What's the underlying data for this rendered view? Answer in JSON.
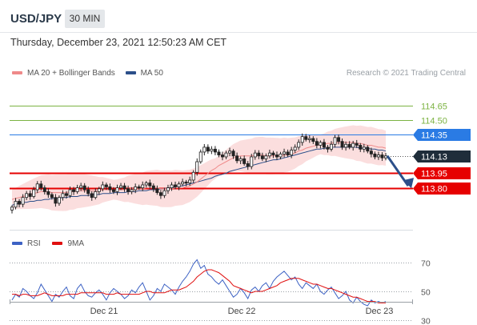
{
  "header": {
    "symbol": "USD/JPY",
    "timeframe": "30 MIN",
    "timestamp": "Thursday, December 23, 2021 12:50:23 AM CET",
    "credit": "Research © 2021 Trading Central"
  },
  "legend_price": [
    {
      "label": "MA 20 + Bollinger Bands",
      "color": "#ef8a8a"
    },
    {
      "label": "MA 50",
      "color": "#2c4f8a"
    }
  ],
  "legend_rsi": [
    {
      "label": "RSI",
      "color": "#3d62c4"
    },
    {
      "label": "9MA",
      "color": "#e01010"
    }
  ],
  "chart_data": [
    {
      "type": "candlestick",
      "title": "USD/JPY",
      "ylim": [
        113.55,
        114.78
      ],
      "x_ticks": [
        "Dec 21",
        "Dec 22",
        "Dec 23"
      ],
      "levels": [
        {
          "label": "114.65",
          "value": 114.65,
          "color": "#7cb342",
          "style": "target"
        },
        {
          "label": "114.50",
          "value": 114.5,
          "color": "#7cb342",
          "style": "target"
        },
        {
          "label": "114.35",
          "value": 114.35,
          "color": "#2a7be4",
          "style": "pivot"
        },
        {
          "label": "114.13",
          "value": 114.13,
          "color": "#1f2d3a",
          "style": "last"
        },
        {
          "label": "113.95",
          "value": 113.95,
          "color": "#e60000",
          "style": "support"
        },
        {
          "label": "113.80",
          "value": 113.8,
          "color": "#e60000",
          "style": "support"
        }
      ],
      "closes": [
        113.6,
        113.66,
        113.63,
        113.7,
        113.74,
        113.71,
        113.78,
        113.84,
        113.8,
        113.76,
        113.73,
        113.7,
        113.64,
        113.7,
        113.74,
        113.72,
        113.78,
        113.76,
        113.8,
        113.82,
        113.78,
        113.74,
        113.7,
        113.76,
        113.79,
        113.83,
        113.81,
        113.78,
        113.76,
        113.8,
        113.82,
        113.79,
        113.76,
        113.78,
        113.81,
        113.8,
        113.83,
        113.85,
        113.82,
        113.79,
        113.75,
        113.72,
        113.77,
        113.8,
        113.83,
        113.81,
        113.84,
        113.86,
        113.85,
        113.88,
        113.96,
        114.07,
        114.17,
        114.22,
        114.18,
        114.2,
        114.17,
        114.14,
        114.12,
        114.16,
        114.18,
        114.13,
        114.08,
        114.1,
        114.05,
        114.02,
        114.12,
        114.16,
        114.13,
        114.1,
        114.13,
        114.16,
        114.14,
        114.12,
        114.15,
        114.17,
        114.14,
        114.19,
        114.22,
        114.27,
        114.33,
        114.3,
        114.31,
        114.28,
        114.24,
        114.27,
        114.22,
        114.2,
        114.25,
        114.32,
        114.28,
        114.22,
        114.25,
        114.22,
        114.26,
        114.24,
        114.2,
        114.22,
        114.18,
        114.15,
        114.12,
        114.14,
        114.11,
        114.13
      ],
      "ma20": [
        113.68,
        113.69,
        113.7,
        113.71,
        113.72,
        113.73,
        113.74,
        113.75,
        113.76,
        113.76,
        113.76,
        113.75,
        113.75,
        113.75,
        113.75,
        113.75,
        113.76,
        113.76,
        113.77,
        113.77,
        113.77,
        113.77,
        113.77,
        113.77,
        113.77,
        113.78,
        113.78,
        113.78,
        113.78,
        113.78,
        113.78,
        113.78,
        113.79,
        113.79,
        113.79,
        113.79,
        113.79,
        113.8,
        113.8,
        113.8,
        113.8,
        113.79,
        113.79,
        113.79,
        113.79,
        113.8,
        113.8,
        113.8,
        113.81,
        113.82,
        113.84,
        113.86,
        113.89,
        113.92,
        113.95,
        113.98,
        114.0,
        114.03,
        114.05,
        114.07,
        114.09,
        114.11,
        114.12,
        114.13,
        114.13,
        114.13,
        114.13,
        114.14,
        114.14,
        114.14,
        114.13,
        114.13,
        114.13,
        114.13,
        114.13,
        114.14,
        114.14,
        114.15,
        114.16,
        114.18,
        114.19,
        114.21,
        114.22,
        114.23,
        114.24,
        114.25,
        114.25,
        114.26,
        114.26,
        114.27,
        114.27,
        114.27,
        114.27,
        114.27,
        114.27,
        114.26,
        114.26,
        114.25,
        114.24,
        114.24,
        114.23,
        114.22,
        114.22,
        114.21
      ],
      "ma50": [
        113.62,
        113.63,
        113.64,
        113.65,
        113.65,
        113.66,
        113.66,
        113.67,
        113.67,
        113.68,
        113.68,
        113.69,
        113.69,
        113.69,
        113.7,
        113.7,
        113.71,
        113.71,
        113.71,
        113.72,
        113.72,
        113.72,
        113.73,
        113.73,
        113.73,
        113.74,
        113.74,
        113.74,
        113.75,
        113.75,
        113.75,
        113.75,
        113.76,
        113.76,
        113.76,
        113.77,
        113.77,
        113.77,
        113.78,
        113.78,
        113.78,
        113.79,
        113.79,
        113.8,
        113.8,
        113.81,
        113.82,
        113.82,
        113.83,
        113.84,
        113.85,
        113.86,
        113.87,
        113.88,
        113.89,
        113.9,
        113.92,
        113.93,
        113.94,
        113.95,
        113.97,
        113.98,
        113.99,
        114.0,
        114.01,
        114.02,
        114.03,
        114.04,
        114.05,
        114.06,
        114.07,
        114.08,
        114.09,
        114.09,
        114.1,
        114.11,
        114.12,
        114.13,
        114.14,
        114.15,
        114.16,
        114.17,
        114.18,
        114.19,
        114.2,
        114.2,
        114.21,
        114.21,
        114.22,
        114.22,
        114.22,
        114.22,
        114.22,
        114.22,
        114.22,
        114.22,
        114.21,
        114.21,
        114.21,
        114.2,
        114.2,
        114.19,
        114.19,
        114.18
      ]
    },
    {
      "type": "line",
      "title": "RSI",
      "ylim": [
        20,
        80
      ],
      "y_ticks": [
        70,
        50,
        30
      ],
      "series": [
        {
          "name": "RSI",
          "values": [
            44,
            48,
            46,
            52,
            50,
            47,
            45,
            49,
            55,
            51,
            47,
            43,
            48,
            46,
            50,
            53,
            47,
            45,
            52,
            55,
            50,
            47,
            46,
            49,
            51,
            48,
            44,
            49,
            52,
            50,
            48,
            45,
            47,
            51,
            49,
            53,
            56,
            50,
            44,
            47,
            52,
            50,
            55,
            53,
            51,
            48,
            53,
            57,
            60,
            64,
            69,
            72,
            66,
            68,
            62,
            60,
            57,
            55,
            58,
            54,
            50,
            46,
            48,
            52,
            49,
            45,
            51,
            53,
            50,
            54,
            56,
            52,
            57,
            60,
            62,
            64,
            61,
            58,
            60,
            55,
            52,
            56,
            54,
            52,
            55,
            50,
            48,
            51,
            53,
            49,
            45,
            47,
            50,
            44,
            42,
            46,
            43,
            41,
            40,
            44,
            42,
            43,
            42,
            43
          ]
        },
        {
          "name": "9MA",
          "values": [
            48,
            48,
            47,
            48,
            48,
            47,
            47,
            47,
            48,
            49,
            48,
            47,
            47,
            47,
            47,
            48,
            48,
            48,
            48,
            49,
            49,
            49,
            49,
            49,
            49,
            49,
            48,
            48,
            48,
            49,
            48,
            48,
            48,
            48,
            48,
            48,
            49,
            50,
            50,
            49,
            49,
            49,
            49,
            50,
            51,
            51,
            51,
            52,
            53,
            55,
            57,
            60,
            62,
            64,
            65,
            65,
            64,
            63,
            61,
            59,
            57,
            54,
            53,
            52,
            51,
            50,
            49,
            50,
            50,
            50,
            51,
            52,
            53,
            54,
            56,
            57,
            58,
            59,
            59,
            59,
            58,
            57,
            56,
            55,
            55,
            54,
            53,
            52,
            52,
            51,
            50,
            49,
            48,
            47,
            46,
            46,
            45,
            44,
            43,
            43,
            43,
            42,
            42,
            42
          ]
        }
      ]
    }
  ]
}
